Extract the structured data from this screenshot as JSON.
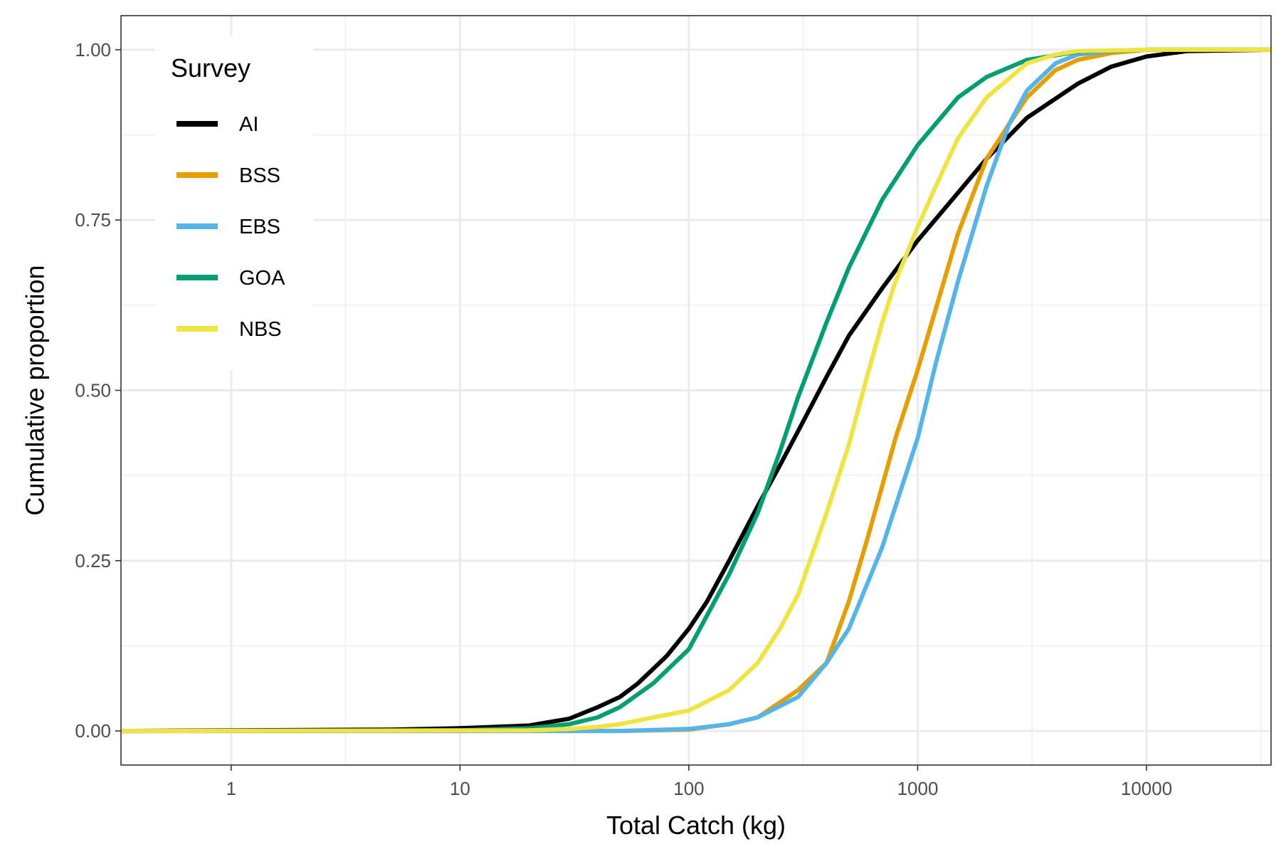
{
  "chart_data": {
    "type": "line",
    "title": "",
    "xlabel": "Total Catch (kg)",
    "ylabel": "Cumulative proportion",
    "x_scale": "log10",
    "xlim": [
      0.33,
      35000
    ],
    "ylim": [
      -0.05,
      1.05
    ],
    "x_ticks": [
      1,
      10,
      100,
      1000,
      10000
    ],
    "x_tick_labels": [
      "1",
      "10",
      "100",
      "1000",
      "10000"
    ],
    "y_ticks": [
      0,
      0.25,
      0.5,
      0.75,
      1.0
    ],
    "y_tick_labels": [
      "0.00",
      "0.25",
      "0.50",
      "0.75",
      "1.00"
    ],
    "grid": true,
    "legend": {
      "title": "Survey",
      "position": "top-left inside"
    },
    "series": [
      {
        "name": "AI",
        "color": "#000000",
        "x": [
          0.33,
          5,
          10,
          20,
          30,
          40,
          50,
          60,
          80,
          100,
          120,
          150,
          200,
          250,
          300,
          400,
          500,
          700,
          1000,
          1500,
          2000,
          3000,
          5000,
          7000,
          10000,
          15000,
          35000
        ],
        "y": [
          0,
          0.002,
          0.004,
          0.008,
          0.018,
          0.035,
          0.05,
          0.07,
          0.11,
          0.15,
          0.19,
          0.25,
          0.33,
          0.39,
          0.44,
          0.52,
          0.58,
          0.65,
          0.72,
          0.79,
          0.84,
          0.9,
          0.95,
          0.975,
          0.99,
          0.998,
          1.0
        ]
      },
      {
        "name": "BSS",
        "color": "#E69F00",
        "x": [
          0.33,
          50,
          100,
          150,
          200,
          300,
          400,
          500,
          600,
          700,
          800,
          1000,
          1200,
          1500,
          2000,
          2500,
          3000,
          4000,
          5000,
          7000,
          10000,
          35000
        ],
        "y": [
          0,
          0,
          0.002,
          0.01,
          0.02,
          0.06,
          0.1,
          0.19,
          0.28,
          0.36,
          0.43,
          0.53,
          0.62,
          0.73,
          0.84,
          0.89,
          0.93,
          0.97,
          0.985,
          0.995,
          1.0,
          1.0
        ]
      },
      {
        "name": "EBS",
        "color": "#56B4E9",
        "x": [
          0.33,
          50,
          100,
          150,
          200,
          300,
          400,
          500,
          700,
          1000,
          1200,
          1500,
          2000,
          2500,
          3000,
          4000,
          5000,
          7000,
          10000,
          35000
        ],
        "y": [
          0,
          0,
          0.003,
          0.01,
          0.02,
          0.05,
          0.1,
          0.15,
          0.27,
          0.43,
          0.54,
          0.66,
          0.8,
          0.89,
          0.94,
          0.98,
          0.993,
          0.998,
          1.0,
          1.0
        ]
      },
      {
        "name": "GOA",
        "color": "#009E73",
        "x": [
          0.33,
          10,
          20,
          30,
          40,
          50,
          70,
          100,
          150,
          200,
          250,
          300,
          400,
          500,
          700,
          1000,
          1500,
          2000,
          3000,
          5000,
          10000,
          35000
        ],
        "y": [
          0,
          0.001,
          0.004,
          0.01,
          0.02,
          0.035,
          0.07,
          0.12,
          0.23,
          0.32,
          0.41,
          0.49,
          0.6,
          0.68,
          0.78,
          0.86,
          0.93,
          0.96,
          0.985,
          0.997,
          1.0,
          1.0
        ]
      },
      {
        "name": "NBS",
        "color": "#F0E442",
        "x": [
          0.33,
          20,
          30,
          40,
          50,
          70,
          100,
          150,
          200,
          250,
          300,
          400,
          500,
          600,
          700,
          800,
          1000,
          1200,
          1500,
          2000,
          3000,
          4000,
          5000,
          10000,
          35000
        ],
        "y": [
          0,
          0.001,
          0.003,
          0.006,
          0.01,
          0.02,
          0.03,
          0.06,
          0.1,
          0.15,
          0.2,
          0.32,
          0.42,
          0.52,
          0.6,
          0.66,
          0.74,
          0.8,
          0.87,
          0.93,
          0.98,
          0.993,
          0.998,
          1.0,
          1.0
        ]
      }
    ]
  }
}
